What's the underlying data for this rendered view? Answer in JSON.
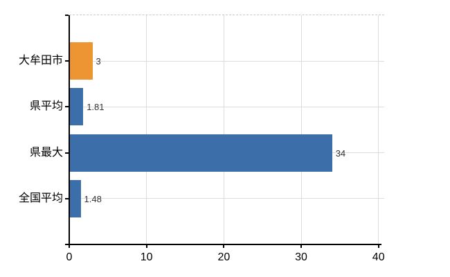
{
  "chart_data": {
    "type": "bar",
    "orientation": "horizontal",
    "title": "",
    "categories": [
      "大牟田市",
      "県平均",
      "県最大",
      "全国平均"
    ],
    "values": [
      3,
      1.81,
      34,
      1.48
    ],
    "value_labels": [
      "3",
      "1.81",
      "34",
      "1.48"
    ],
    "bar_colors": [
      "#ED9433",
      "#3C6EA9",
      "#3C6EA9",
      "#3C6EA9"
    ],
    "highlight_category": "大牟田市",
    "x_tick_labels": [
      "0",
      "10",
      "20",
      "30",
      "40"
    ],
    "x_tick_values": [
      0,
      10,
      20,
      30,
      40
    ],
    "xlim": [
      0,
      40.75
    ],
    "xlabel": "",
    "ylabel": "",
    "grid": true,
    "legend": false
  },
  "style": {
    "background": "#ffffff",
    "bar_blue": "#3C6EA9",
    "bar_orange": "#ED9433",
    "grid_color": "#DCDCDC",
    "top_border_color": "#C9C9C9",
    "axis_color": "#000000",
    "value_label_color": "#333333",
    "tick_label_color": "#000000"
  }
}
